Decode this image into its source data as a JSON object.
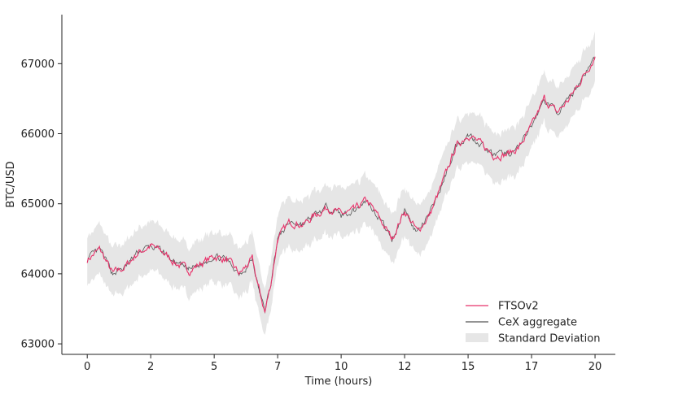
{
  "chart_data": {
    "type": "line",
    "title": "",
    "xlabel": "Time (hours)",
    "ylabel": "BTC/USD",
    "xlim": [
      -1,
      20.8
    ],
    "ylim": [
      62850,
      67700
    ],
    "x_ticks": [
      0,
      2.5,
      5,
      7.5,
      10,
      12.5,
      15,
      17.5,
      20
    ],
    "x_tick_labels": [
      "0",
      "2",
      "5",
      "7",
      "10",
      "12",
      "15",
      "17",
      "20"
    ],
    "y_ticks": [
      63000,
      64000,
      65000,
      66000,
      67000
    ],
    "y_tick_labels": [
      "63000",
      "64000",
      "65000",
      "66000",
      "67000"
    ],
    "grid": false,
    "legend_position": "bottom-right",
    "std_dev": 350,
    "colors": {
      "ftso": "#e8336b",
      "cex": "#555555",
      "band": "#e6e6e6"
    },
    "series": [
      {
        "name": "FTSOv2",
        "x": [
          0,
          0.5,
          1,
          1.5,
          2,
          2.5,
          3,
          3.5,
          4,
          4.5,
          5,
          5.5,
          6,
          6.25,
          6.5,
          6.75,
          7,
          7.25,
          7.5,
          8,
          8.5,
          9,
          9.5,
          10,
          10.5,
          11,
          11.5,
          12,
          12.5,
          13,
          13.5,
          14,
          14.5,
          15,
          15.5,
          16,
          16.5,
          17,
          17.5,
          18,
          18.5,
          19,
          19.5,
          20
        ],
        "values": [
          64200,
          64350,
          64000,
          64100,
          64300,
          64400,
          64300,
          64150,
          64050,
          64150,
          64250,
          64200,
          64000,
          64100,
          64200,
          63800,
          63450,
          63900,
          64500,
          64750,
          64700,
          64850,
          64950,
          64850,
          64900,
          65050,
          64800,
          64500,
          64900,
          64600,
          64850,
          65300,
          65800,
          66000,
          65850,
          65700,
          65700,
          65800,
          66100,
          66500,
          66300,
          66500,
          66800,
          67100
        ]
      },
      {
        "name": "CeX aggregate",
        "x": [
          0,
          0.5,
          1,
          1.5,
          2,
          2.5,
          3,
          3.5,
          4,
          4.5,
          5,
          5.5,
          6,
          6.25,
          6.5,
          6.75,
          7,
          7.25,
          7.5,
          8,
          8.5,
          9,
          9.5,
          10,
          10.5,
          11,
          11.5,
          12,
          12.5,
          13,
          13.5,
          14,
          14.5,
          15,
          15.5,
          16,
          16.5,
          17,
          17.5,
          18,
          18.5,
          19,
          19.5,
          20
        ],
        "values": [
          64210,
          64340,
          64010,
          64090,
          64310,
          64390,
          64310,
          64140,
          64060,
          64140,
          64260,
          64190,
          64010,
          64090,
          64210,
          63790,
          63460,
          63890,
          64510,
          64740,
          64710,
          64840,
          64960,
          64840,
          64910,
          65040,
          64810,
          64490,
          64910,
          64590,
          64860,
          65290,
          65810,
          65990,
          65860,
          65690,
          65710,
          65790,
          66110,
          66490,
          66310,
          66490,
          66810,
          67090
        ]
      }
    ],
    "legend": [
      {
        "key": "ftso",
        "label": "FTSOv2"
      },
      {
        "key": "cex",
        "label": "CeX aggregate"
      },
      {
        "key": "band",
        "label": "Standard Deviation"
      }
    ]
  }
}
